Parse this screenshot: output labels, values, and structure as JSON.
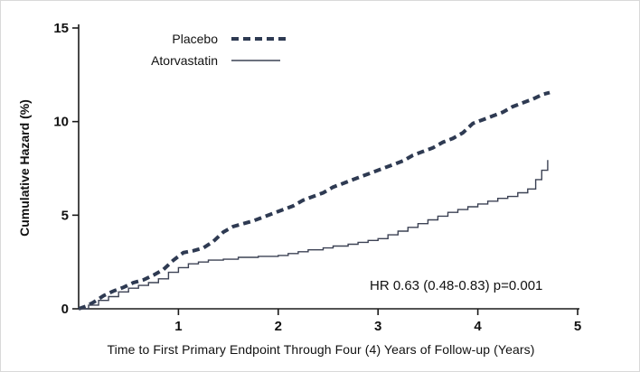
{
  "chart_data": {
    "type": "line",
    "title": "",
    "xlabel": "Time to First Primary Endpoint Through Four (4) Years of Follow-up (Years)",
    "ylabel": "Cumulative Hazard (%)",
    "xlim": [
      0,
      5
    ],
    "ylim": [
      0,
      15
    ],
    "xticks": [
      1,
      2,
      3,
      4,
      5
    ],
    "yticks": [
      0,
      5,
      10,
      15
    ],
    "grid": false,
    "axis_color": "#1a1a1a",
    "legend_position": "top-left-inside",
    "annotation": "HR 0.63 (0.48-0.83)  p=0.001",
    "series": [
      {
        "name": "Placebo",
        "style": "dashed",
        "interpolation": "linear",
        "color": "#2e3a52",
        "width": 4,
        "dash": "8 5",
        "points": [
          [
            0,
            0
          ],
          [
            0.08,
            0.15
          ],
          [
            0.15,
            0.35
          ],
          [
            0.25,
            0.7
          ],
          [
            0.35,
            0.95
          ],
          [
            0.45,
            1.15
          ],
          [
            0.55,
            1.4
          ],
          [
            0.65,
            1.55
          ],
          [
            0.75,
            1.8
          ],
          [
            0.85,
            2.1
          ],
          [
            0.95,
            2.6
          ],
          [
            1.05,
            3.0
          ],
          [
            1.15,
            3.1
          ],
          [
            1.25,
            3.25
          ],
          [
            1.35,
            3.6
          ],
          [
            1.45,
            4.1
          ],
          [
            1.55,
            4.4
          ],
          [
            1.65,
            4.55
          ],
          [
            1.75,
            4.7
          ],
          [
            1.85,
            4.9
          ],
          [
            1.95,
            5.1
          ],
          [
            2.05,
            5.3
          ],
          [
            2.15,
            5.5
          ],
          [
            2.25,
            5.8
          ],
          [
            2.35,
            6.0
          ],
          [
            2.45,
            6.2
          ],
          [
            2.55,
            6.5
          ],
          [
            2.65,
            6.7
          ],
          [
            2.75,
            6.9
          ],
          [
            2.85,
            7.1
          ],
          [
            2.95,
            7.3
          ],
          [
            3.05,
            7.5
          ],
          [
            3.15,
            7.7
          ],
          [
            3.25,
            7.9
          ],
          [
            3.35,
            8.2
          ],
          [
            3.45,
            8.4
          ],
          [
            3.55,
            8.6
          ],
          [
            3.65,
            8.9
          ],
          [
            3.75,
            9.1
          ],
          [
            3.85,
            9.4
          ],
          [
            3.95,
            9.9
          ],
          [
            4.05,
            10.1
          ],
          [
            4.15,
            10.3
          ],
          [
            4.25,
            10.5
          ],
          [
            4.35,
            10.8
          ],
          [
            4.45,
            11.0
          ],
          [
            4.55,
            11.2
          ],
          [
            4.65,
            11.45
          ],
          [
            4.72,
            11.55
          ]
        ]
      },
      {
        "name": "Atorvastatin",
        "style": "solid",
        "interpolation": "step",
        "color": "#3c4254",
        "width": 1.4,
        "dash": "",
        "points": [
          [
            0,
            0
          ],
          [
            0.1,
            0.2
          ],
          [
            0.2,
            0.45
          ],
          [
            0.3,
            0.65
          ],
          [
            0.4,
            0.9
          ],
          [
            0.5,
            1.1
          ],
          [
            0.6,
            1.25
          ],
          [
            0.7,
            1.4
          ],
          [
            0.8,
            1.6
          ],
          [
            0.9,
            1.95
          ],
          [
            1.0,
            2.2
          ],
          [
            1.1,
            2.4
          ],
          [
            1.2,
            2.5
          ],
          [
            1.3,
            2.6
          ],
          [
            1.45,
            2.65
          ],
          [
            1.6,
            2.75
          ],
          [
            1.8,
            2.8
          ],
          [
            2.0,
            2.85
          ],
          [
            2.1,
            2.95
          ],
          [
            2.2,
            3.05
          ],
          [
            2.3,
            3.15
          ],
          [
            2.45,
            3.25
          ],
          [
            2.55,
            3.35
          ],
          [
            2.7,
            3.45
          ],
          [
            2.8,
            3.55
          ],
          [
            2.9,
            3.65
          ],
          [
            3.0,
            3.75
          ],
          [
            3.1,
            3.95
          ],
          [
            3.2,
            4.15
          ],
          [
            3.3,
            4.35
          ],
          [
            3.4,
            4.55
          ],
          [
            3.5,
            4.75
          ],
          [
            3.6,
            4.95
          ],
          [
            3.7,
            5.15
          ],
          [
            3.8,
            5.3
          ],
          [
            3.9,
            5.45
          ],
          [
            4.0,
            5.6
          ],
          [
            4.1,
            5.75
          ],
          [
            4.2,
            5.9
          ],
          [
            4.3,
            6.0
          ],
          [
            4.4,
            6.2
          ],
          [
            4.5,
            6.4
          ],
          [
            4.58,
            6.9
          ],
          [
            4.64,
            7.4
          ],
          [
            4.7,
            7.95
          ]
        ]
      }
    ]
  }
}
